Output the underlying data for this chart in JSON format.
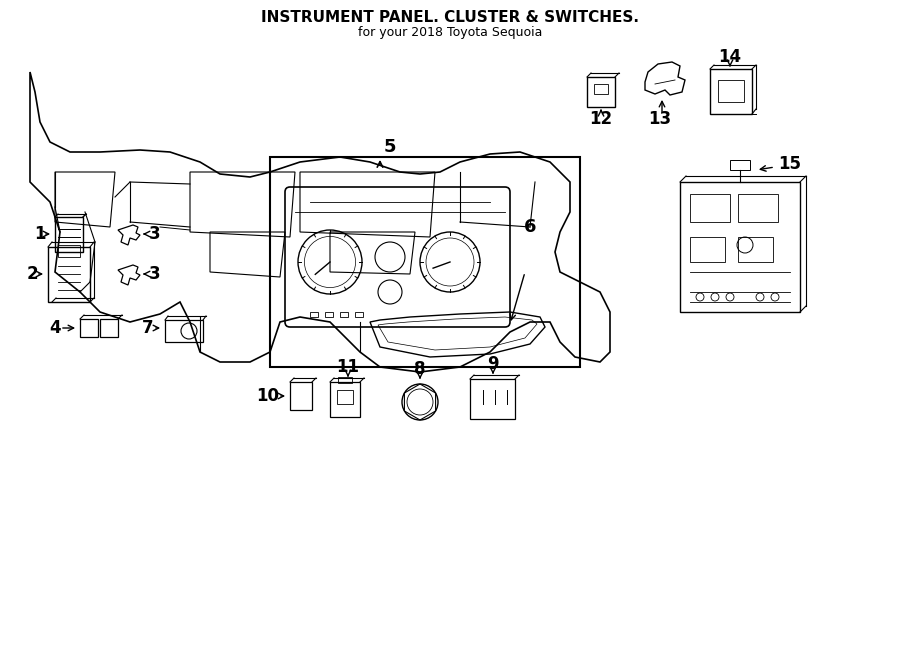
{
  "title": "INSTRUMENT PANEL. CLUSTER & SWITCHES.",
  "subtitle": "for your 2018 Toyota Sequoia",
  "bg_color": "#ffffff",
  "line_color": "#000000",
  "part_numbers": [
    1,
    2,
    3,
    4,
    5,
    6,
    7,
    8,
    9,
    10,
    11,
    12,
    13,
    14,
    15
  ],
  "fig_width": 9.0,
  "fig_height": 6.62,
  "dpi": 100
}
